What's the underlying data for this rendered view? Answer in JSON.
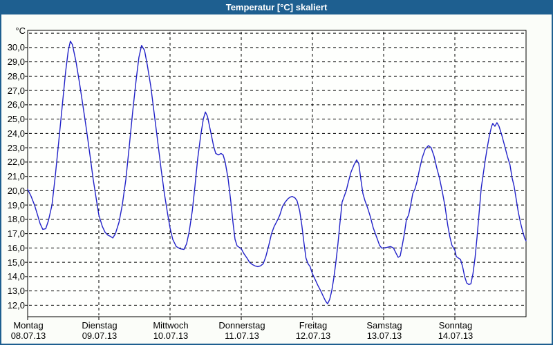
{
  "window": {
    "title": "Temperatur [°C] skaliert"
  },
  "colors": {
    "titlebar": "#1E5F90",
    "title_text": "#FFFFFF",
    "content_background": "#FBFDF9",
    "plot_background": "#FEFFFD",
    "plot_border": "#000000",
    "grid": "#000000",
    "line": "#2121C8"
  },
  "chart_data": {
    "type": "line",
    "title": "Temperatur [°C] skaliert",
    "y_unit_label": "°C",
    "grid": "dashed",
    "legend": "none",
    "x_range_hours": [
      0,
      168
    ],
    "x_axis": {
      "days": [
        {
          "name": "Montag",
          "date": "08.07.13"
        },
        {
          "name": "Dienstag",
          "date": "09.07.13"
        },
        {
          "name": "Mittwoch",
          "date": "10.07.13"
        },
        {
          "name": "Donnerstag",
          "date": "11.07.13"
        },
        {
          "name": "Freitag",
          "date": "12.07.13"
        },
        {
          "name": "Samstag",
          "date": "13.07.13"
        },
        {
          "name": "Sonntag",
          "date": "14.07.13"
        }
      ]
    },
    "y_axis": {
      "range": [
        11.2,
        31.2
      ],
      "tick_values": [
        30,
        29,
        28,
        27,
        26,
        25,
        24,
        23,
        22,
        21,
        20,
        19,
        18,
        17,
        16,
        15,
        14,
        13,
        12
      ],
      "tick_labels": [
        "30,0",
        "29,0",
        "28,0",
        "27,0",
        "26,0",
        "25,0",
        "24,0",
        "23,0",
        "22,0",
        "21,0",
        "20,0",
        "19,0",
        "18,0",
        "17,0",
        "16,0",
        "15,0",
        "14,0",
        "13,0",
        "12,0"
      ]
    },
    "series": [
      {
        "name": "Temperatur [°C]",
        "color": "#2121C8",
        "points": [
          [
            0,
            20.1
          ],
          [
            1.2,
            19.6
          ],
          [
            2.3,
            19.0
          ],
          [
            3.5,
            18.2
          ],
          [
            4.2,
            17.7
          ],
          [
            5.1,
            17.3
          ],
          [
            6.1,
            17.35
          ],
          [
            7,
            17.9
          ],
          [
            8.2,
            19.0
          ],
          [
            9.3,
            21.0
          ],
          [
            10.5,
            23.5
          ],
          [
            11.7,
            26.0
          ],
          [
            12.8,
            28.3
          ],
          [
            13.7,
            29.8
          ],
          [
            14.4,
            30.45
          ],
          [
            15.1,
            30.2
          ],
          [
            16.3,
            29.0
          ],
          [
            17.5,
            27.5
          ],
          [
            18.6,
            26.0
          ],
          [
            19.8,
            24.3
          ],
          [
            21,
            22.5
          ],
          [
            22.1,
            20.8
          ],
          [
            23.3,
            19.2
          ],
          [
            24,
            18.3
          ],
          [
            25.2,
            17.5
          ],
          [
            26.1,
            17.1
          ],
          [
            27,
            16.9
          ],
          [
            28,
            16.8
          ],
          [
            28.7,
            16.7
          ],
          [
            29.6,
            17.0
          ],
          [
            30.8,
            17.8
          ],
          [
            31.9,
            19.0
          ],
          [
            33.1,
            20.8
          ],
          [
            34.2,
            23.0
          ],
          [
            35.4,
            25.5
          ],
          [
            36.6,
            27.8
          ],
          [
            37.5,
            29.3
          ],
          [
            38.4,
            30.15
          ],
          [
            39.4,
            29.8
          ],
          [
            40.3,
            28.8
          ],
          [
            41.5,
            27.3
          ],
          [
            42.6,
            25.5
          ],
          [
            43.8,
            23.5
          ],
          [
            45,
            21.5
          ],
          [
            46.1,
            19.8
          ],
          [
            47.1,
            18.5
          ],
          [
            48,
            17.4
          ],
          [
            48.9,
            16.6
          ],
          [
            50.1,
            16.1
          ],
          [
            51.3,
            15.95
          ],
          [
            52.7,
            15.9
          ],
          [
            53.6,
            16.3
          ],
          [
            54.5,
            17.2
          ],
          [
            55.5,
            18.6
          ],
          [
            56.4,
            20.3
          ],
          [
            57.3,
            22.2
          ],
          [
            58.3,
            23.8
          ],
          [
            59.2,
            25.0
          ],
          [
            59.9,
            25.5
          ],
          [
            60.6,
            25.2
          ],
          [
            61.3,
            24.5
          ],
          [
            62,
            23.8
          ],
          [
            62.7,
            23.1
          ],
          [
            63.4,
            22.6
          ],
          [
            64.3,
            22.5
          ],
          [
            65.2,
            22.6
          ],
          [
            65.9,
            22.5
          ],
          [
            66.6,
            22.0
          ],
          [
            67.6,
            20.8
          ],
          [
            68.5,
            19.2
          ],
          [
            69.2,
            17.8
          ],
          [
            69.9,
            16.6
          ],
          [
            70.6,
            16.15
          ],
          [
            71.3,
            16.05
          ],
          [
            72,
            15.95
          ],
          [
            72.9,
            15.6
          ],
          [
            73.9,
            15.3
          ],
          [
            74.8,
            15.0
          ],
          [
            75.7,
            14.85
          ],
          [
            76.6,
            14.75
          ],
          [
            77.6,
            14.7
          ],
          [
            78.5,
            14.75
          ],
          [
            79.4,
            14.9
          ],
          [
            80.3,
            15.4
          ],
          [
            81.3,
            16.2
          ],
          [
            82.2,
            17.0
          ],
          [
            83.1,
            17.5
          ],
          [
            84.1,
            17.9
          ],
          [
            85,
            18.3
          ],
          [
            85.9,
            18.9
          ],
          [
            86.8,
            19.2
          ],
          [
            87.8,
            19.45
          ],
          [
            88.5,
            19.55
          ],
          [
            89.2,
            19.6
          ],
          [
            90.1,
            19.5
          ],
          [
            90.8,
            19.3
          ],
          [
            91.7,
            18.6
          ],
          [
            92.4,
            17.6
          ],
          [
            93.1,
            16.4
          ],
          [
            93.8,
            15.3
          ],
          [
            94.5,
            14.9
          ],
          [
            95.2,
            14.7
          ],
          [
            96,
            14.2
          ],
          [
            96.9,
            13.8
          ],
          [
            97.8,
            13.4
          ],
          [
            98.8,
            13.0
          ],
          [
            99.7,
            12.6
          ],
          [
            100.4,
            12.3
          ],
          [
            101.1,
            12.1
          ],
          [
            101.8,
            12.4
          ],
          [
            102.5,
            13.0
          ],
          [
            103.2,
            13.9
          ],
          [
            103.9,
            15.0
          ],
          [
            104.6,
            16.3
          ],
          [
            105.3,
            17.8
          ],
          [
            106,
            19.2
          ],
          [
            106.7,
            19.6
          ],
          [
            107.4,
            20.0
          ],
          [
            108.1,
            20.6
          ],
          [
            109,
            21.3
          ],
          [
            110,
            21.8
          ],
          [
            110.9,
            22.15
          ],
          [
            111.6,
            21.9
          ],
          [
            112.3,
            20.8
          ],
          [
            113,
            19.8
          ],
          [
            113.7,
            19.3
          ],
          [
            114.6,
            18.8
          ],
          [
            115.5,
            18.2
          ],
          [
            116.5,
            17.4
          ],
          [
            117.2,
            17.0
          ],
          [
            117.9,
            16.6
          ],
          [
            118.6,
            16.2
          ],
          [
            119.3,
            16.0
          ],
          [
            120,
            16.0
          ],
          [
            121.2,
            16.05
          ],
          [
            122.3,
            16.1
          ],
          [
            123.3,
            16.0
          ],
          [
            124,
            15.7
          ],
          [
            124.9,
            15.35
          ],
          [
            125.6,
            15.45
          ],
          [
            126.3,
            16.2
          ],
          [
            127,
            17.0
          ],
          [
            127.7,
            18.0
          ],
          [
            128.4,
            18.3
          ],
          [
            129.1,
            19.0
          ],
          [
            129.8,
            19.8
          ],
          [
            130.5,
            20.1
          ],
          [
            131.2,
            20.6
          ],
          [
            132.1,
            21.5
          ],
          [
            133,
            22.3
          ],
          [
            134,
            22.9
          ],
          [
            135.1,
            23.15
          ],
          [
            136,
            23.0
          ],
          [
            137,
            22.4
          ],
          [
            137.9,
            21.6
          ],
          [
            138.8,
            20.9
          ],
          [
            139.8,
            19.9
          ],
          [
            140.7,
            18.9
          ],
          [
            141.6,
            17.6
          ],
          [
            142.3,
            16.8
          ],
          [
            143,
            16.2
          ],
          [
            144,
            15.85
          ],
          [
            144.5,
            15.4
          ],
          [
            145.2,
            15.3
          ],
          [
            145.9,
            15.2
          ],
          [
            146.6,
            14.7
          ],
          [
            147.3,
            14.0
          ],
          [
            148,
            13.55
          ],
          [
            148.7,
            13.45
          ],
          [
            149.4,
            13.5
          ],
          [
            150.1,
            14.2
          ],
          [
            150.8,
            15.3
          ],
          [
            151.5,
            16.8
          ],
          [
            152.2,
            18.5
          ],
          [
            152.9,
            20.2
          ],
          [
            153.6,
            21.2
          ],
          [
            154.3,
            22.2
          ],
          [
            155,
            23.1
          ],
          [
            155.7,
            23.9
          ],
          [
            156.4,
            24.5
          ],
          [
            156.8,
            24.7
          ],
          [
            157.5,
            24.5
          ],
          [
            158.2,
            24.75
          ],
          [
            158.9,
            24.5
          ],
          [
            159.8,
            23.9
          ],
          [
            160.7,
            23.2
          ],
          [
            161.7,
            22.4
          ],
          [
            162.6,
            21.8
          ],
          [
            163.3,
            20.9
          ],
          [
            164,
            20.3
          ],
          [
            164.7,
            19.4
          ],
          [
            165.4,
            18.5
          ],
          [
            166.1,
            17.8
          ],
          [
            166.8,
            17.2
          ],
          [
            167.5,
            16.7
          ],
          [
            168,
            16.5
          ]
        ]
      }
    ]
  }
}
